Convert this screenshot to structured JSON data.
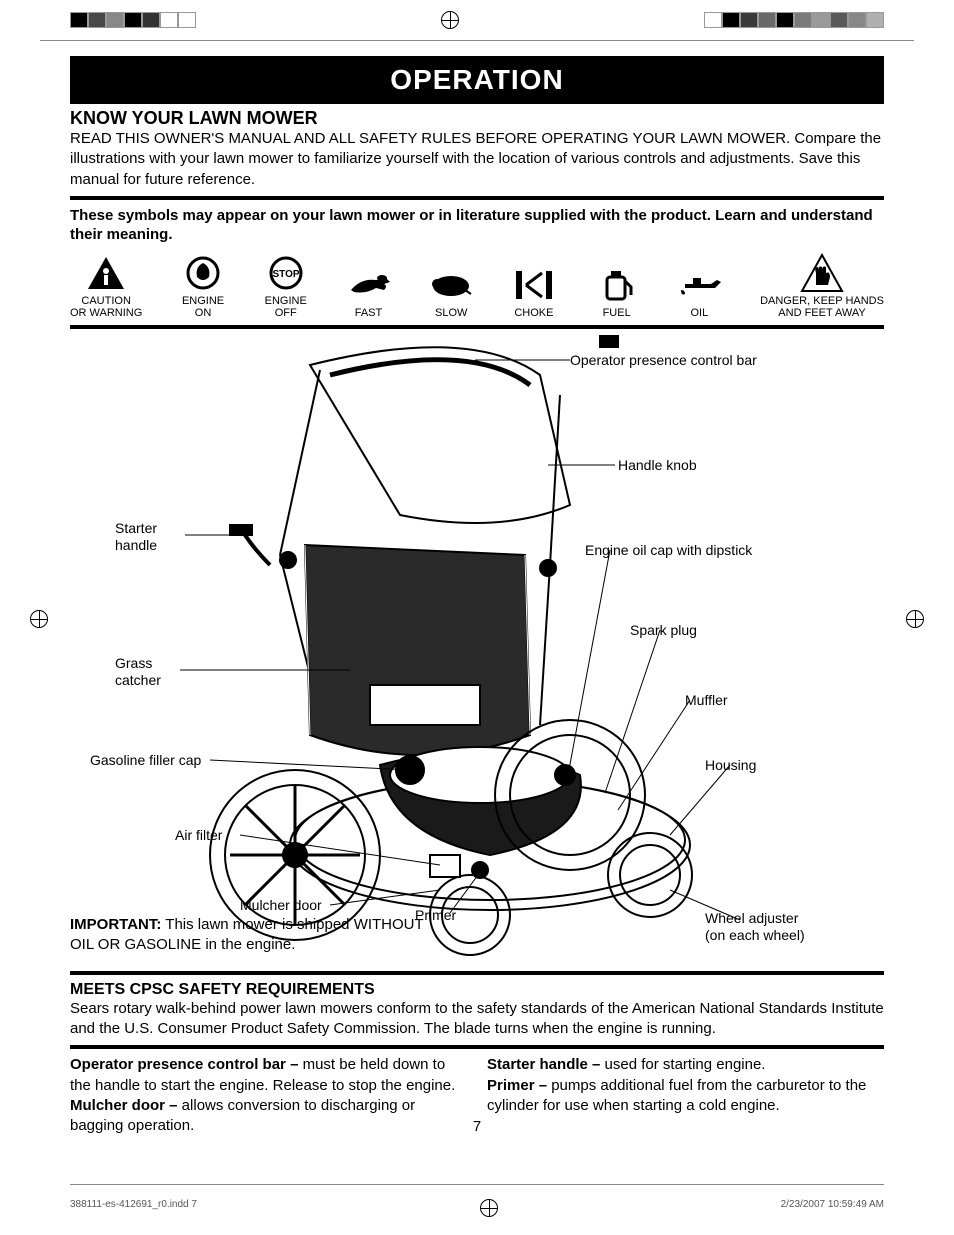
{
  "colorbar_left": [
    "#000000",
    "#4a4a4a",
    "#888888",
    "#000000",
    "#333333",
    "#ffffff",
    "#ffffff"
  ],
  "colorbar_right": [
    "#ffffff",
    "#000000",
    "#3a3a3a",
    "#6a6a6a",
    "#000000",
    "#7a7a7a",
    "#9a9a9a",
    "#5a5a5a",
    "#888888",
    "#b0b0b0"
  ],
  "banner": "OPERATION",
  "know_title": "KNOW YOUR LAWN MOWER",
  "know_body": "READ THIS OWNER'S MANUAL AND ALL SAFETY RULES BEFORE OPERATING YOUR LAWN MOWER.  Compare the illustrations with your lawn mower to familiarize yourself with the location of various controls and adjustments.  Save this manual for future reference.",
  "symbols_intro": "These symbols may appear on your lawn mower or in literature supplied with the product.  Learn and understand their meaning.",
  "symbols": [
    {
      "label": "CAUTION\nOR WARNING",
      "icon": "caution"
    },
    {
      "label": "ENGINE\nON",
      "icon": "engine-on"
    },
    {
      "label": "ENGINE\nOFF",
      "icon": "engine-off"
    },
    {
      "label": "FAST",
      "icon": "fast"
    },
    {
      "label": "SLOW",
      "icon": "slow"
    },
    {
      "label": "CHOKE",
      "icon": "choke"
    },
    {
      "label": "FUEL",
      "icon": "fuel"
    },
    {
      "label": "OIL",
      "icon": "oil"
    },
    {
      "label": "DANGER, KEEP HANDS\nAND FEET AWAY",
      "icon": "danger-hands"
    }
  ],
  "diagram_labels": {
    "starter_handle": "Starter\nhandle",
    "grass_catcher": "Grass\ncatcher",
    "gasoline_cap": "Gasoline filler cap",
    "air_filter": "Air filter",
    "mulcher_door": "Mulcher door",
    "primer": "Primer",
    "control_bar": "Operator presence control bar",
    "handle_knob": "Handle knob",
    "oil_cap": "Engine oil cap with dipstick",
    "spark_plug": "Spark plug",
    "muffler": "Muffler",
    "housing": "Housing",
    "wheel_adjuster": "Wheel adjuster\n(on each wheel)"
  },
  "important_label": "IMPORTANT:",
  "important_text": " This lawn mower is shipped WITHOUT OIL OR GASOLINE in the engine.",
  "cpsc_title": "MEETS CPSC SAFETY REQUIREMENTS",
  "cpsc_body": "Sears rotary walk-behind power lawn mowers conform to the safety standards of the American National Standards Institute and the U.S. Consumer Product Safety Commission.  The blade turns when the engine is running.",
  "col_left": [
    {
      "b": "Operator presence control bar –",
      "t": " must be held down to the handle to start the engine.  Release to stop the engine."
    },
    {
      "b": "Mulcher door –",
      "t": " allows conversion to discharging or bagging operation."
    }
  ],
  "col_right": [
    {
      "b": "Starter handle –",
      "t": " used for starting engine."
    },
    {
      "b": "Primer –",
      "t": " pumps additional fuel from the carburetor to the cylinder for use when starting a cold engine."
    }
  ],
  "page_num": "7",
  "footer_left": "388111-es-412691_r0.indd   7",
  "footer_right": "2/23/2007   10:59:49 AM"
}
